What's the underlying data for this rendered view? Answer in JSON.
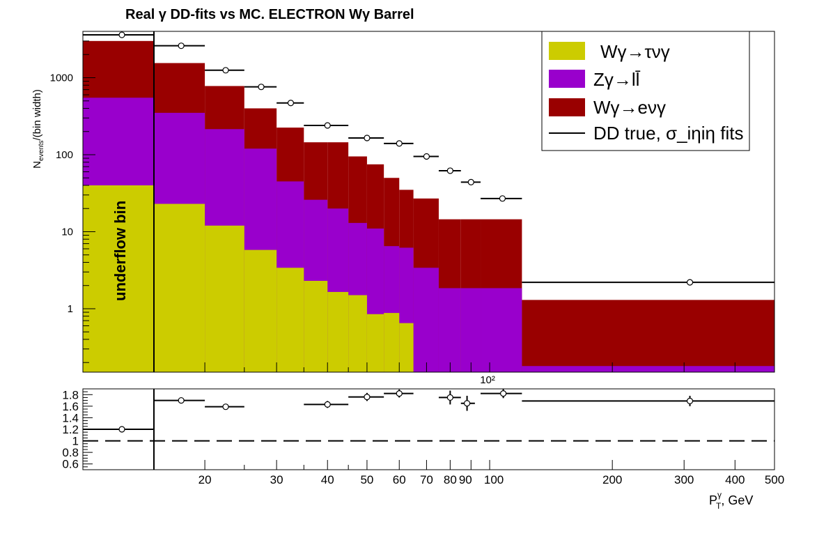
{
  "chart_data": [
    {
      "type": "bar",
      "title": "Real γ DD-fits vs MC. ELECTRON Wγ  Barrel",
      "ylabel": "N_events/(bin width)",
      "ylabel_parts": {
        "main": "N",
        "sub": "events",
        "rest": "/(bin width)"
      },
      "xlabel": "P_T^γ, GeV",
      "xlabel_parts": {
        "main": "P",
        "sup": "γ",
        "sub": "T",
        "rest": ", GeV"
      },
      "xscale": "log",
      "yscale": "log",
      "xlim": [
        10.5,
        500
      ],
      "ylim": [
        0.15,
        4000
      ],
      "underflow_label": "underflow bin",
      "bin_edges": [
        15,
        20,
        25,
        30,
        35,
        40,
        45,
        50,
        55,
        60,
        65,
        75,
        85,
        95,
        120,
        500
      ],
      "stack_order": [
        "Wγ→τνγ",
        "Zγ→ll̄",
        "Wγ→eνγ"
      ],
      "series": [
        {
          "name": "Wγ→τνγ",
          "color": "#cccc00",
          "underflow": 40,
          "values": [
            23,
            12,
            5.8,
            3.4,
            2.3,
            1.65,
            1.5,
            0.85,
            0.88,
            0.65,
            0.1,
            0.1,
            0.1,
            0.1,
            0.1
          ]
        },
        {
          "name": "Zγ→ll̄",
          "color": "#9900cc",
          "underflow": 550,
          "values": [
            350,
            215,
            120,
            45,
            26,
            20,
            13,
            11,
            6.5,
            6.2,
            3.4,
            1.85,
            1.85,
            1.85,
            0.18
          ]
        },
        {
          "name": "Wγ→eνγ",
          "color": "#990000",
          "underflow": 3000,
          "values": [
            1550,
            780,
            400,
            225,
            145,
            145,
            95,
            75,
            50,
            35,
            27,
            14.5,
            14.5,
            14.5,
            1.3
          ]
        }
      ],
      "dd_true": {
        "name": "DD true, σ_iηiη fits",
        "underflow": 3600,
        "points": [
          {
            "x": 17.5,
            "xlo": 15,
            "xhi": 20,
            "y": 2600
          },
          {
            "x": 22.5,
            "xlo": 20,
            "xhi": 25,
            "y": 1250
          },
          {
            "x": 27.5,
            "xlo": 25,
            "xhi": 30,
            "y": 760
          },
          {
            "x": 32.5,
            "xlo": 30,
            "xhi": 35,
            "y": 470
          },
          {
            "x": 40,
            "xlo": 35,
            "xhi": 45,
            "y": 240
          },
          {
            "x": 50,
            "xlo": 45,
            "xhi": 55,
            "y": 165
          },
          {
            "x": 60,
            "xlo": 55,
            "xhi": 65,
            "y": 140
          },
          {
            "x": 70,
            "xlo": 65,
            "xhi": 75,
            "y": 95
          },
          {
            "x": 80,
            "xlo": 75,
            "xhi": 85,
            "y": 62
          },
          {
            "x": 90,
            "xlo": 85,
            "xhi": 95,
            "y": 44
          },
          {
            "x": 107.5,
            "xlo": 95,
            "xhi": 120,
            "y": 27
          },
          {
            "x": 310,
            "xlo": 120,
            "xhi": 500,
            "y": 2.2
          }
        ]
      },
      "y_ticks": [
        "1",
        "10",
        "100",
        "1000"
      ],
      "x_ticks": [
        "20",
        "30",
        "40",
        "50",
        "60",
        "70",
        "80",
        "90",
        "100",
        "200",
        "300",
        "400",
        "500"
      ],
      "x_exponent_label": "10²",
      "legend_placement": "top-right"
    },
    {
      "type": "scatter",
      "ylabel": "",
      "xscale": "log",
      "ylim": [
        0.5,
        1.9
      ],
      "y_ticks": [
        "0.6",
        "0.8",
        "1",
        "1.2",
        "1.4",
        "1.6",
        "1.8"
      ],
      "reference_line": 1.0,
      "underflow": {
        "y": 1.2
      },
      "points": [
        {
          "x": 17.5,
          "xlo": 15,
          "xhi": 20,
          "y": 1.7,
          "err": 0.03
        },
        {
          "x": 22.5,
          "xlo": 20,
          "xhi": 25,
          "y": 1.59,
          "err": 0.03
        },
        {
          "x": 40,
          "xlo": 35,
          "xhi": 45,
          "y": 1.63,
          "err": 0.06
        },
        {
          "x": 50,
          "xlo": 45,
          "xhi": 55,
          "y": 1.76,
          "err": 0.07
        },
        {
          "x": 60,
          "xlo": 55,
          "xhi": 65,
          "y": 1.82,
          "err": 0.07
        },
        {
          "x": 80,
          "xlo": 75,
          "xhi": 85,
          "y": 1.75,
          "err": 0.12
        },
        {
          "x": 88,
          "xlo": 85,
          "xhi": 92,
          "y": 1.65,
          "err": 0.13
        },
        {
          "x": 108,
          "xlo": 95,
          "xhi": 120,
          "y": 1.82,
          "err": 0.08
        },
        {
          "x": 310,
          "xlo": 120,
          "xhi": 500,
          "y": 1.69,
          "err": 0.09
        }
      ]
    }
  ]
}
